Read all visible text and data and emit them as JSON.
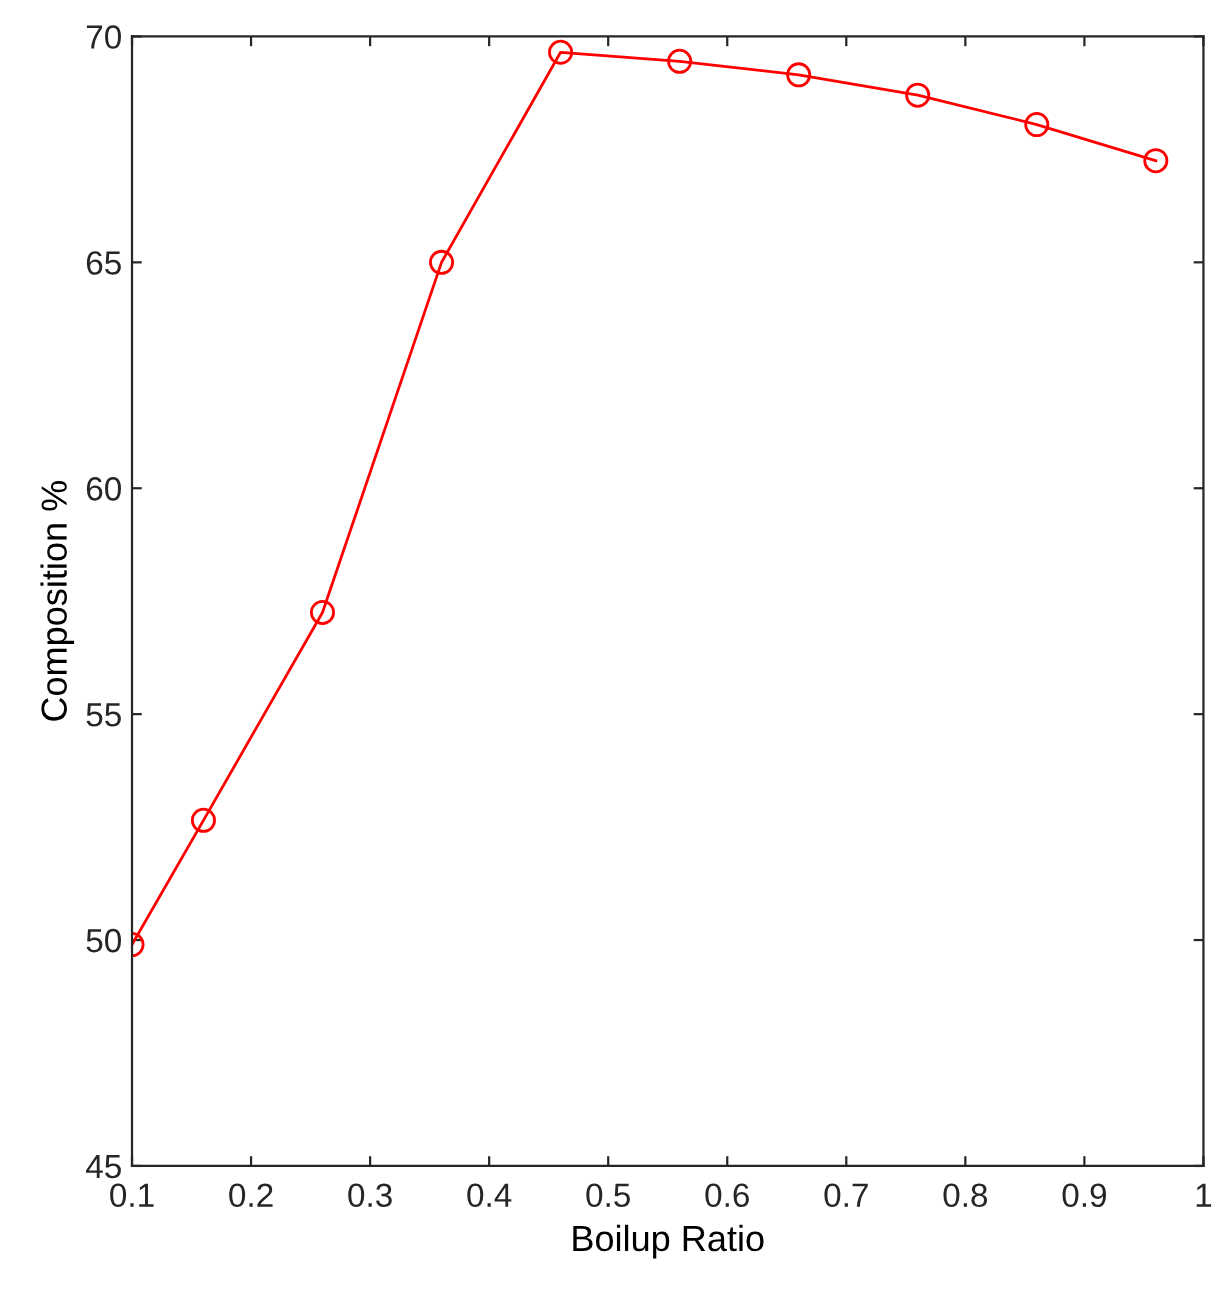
{
  "chart_data": {
    "type": "line",
    "xlabel": "Boilup Ratio",
    "ylabel": "Composition %",
    "x": [
      0.1,
      0.16,
      0.26,
      0.36,
      0.46,
      0.56,
      0.66,
      0.76,
      0.86,
      0.96
    ],
    "series": [
      {
        "color": "#ff0000",
        "values": [
          49.9,
          52.65,
          57.25,
          65.0,
          69.65,
          69.45,
          69.15,
          68.7,
          68.05,
          67.25
        ]
      }
    ],
    "marker": "circle",
    "line_style": "solid",
    "grid": false,
    "legend": false,
    "xlim": [
      0.1,
      1.0
    ],
    "xticks": [
      0.1,
      0.2,
      0.3,
      0.4,
      0.5,
      0.6,
      0.7,
      0.8,
      0.9,
      1
    ],
    "ylim": [
      45,
      70
    ],
    "yticks": [
      45,
      50,
      55,
      60,
      65,
      70
    ]
  }
}
